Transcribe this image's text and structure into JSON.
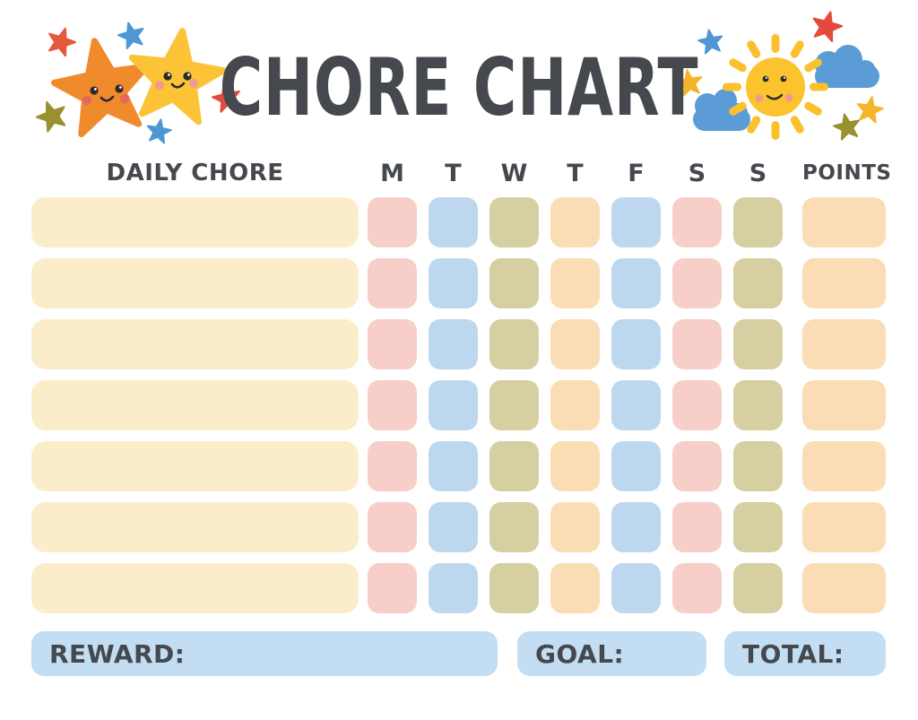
{
  "page": {
    "title": "CHORE CHART"
  },
  "table": {
    "chore_header": "DAILY CHORE",
    "day_headers": [
      "M",
      "T",
      "W",
      "T",
      "F",
      "S",
      "S"
    ],
    "points_header": "POINTS",
    "row_count": 7,
    "chore_cell_color": "cream",
    "day_cell_colors": [
      "pink",
      "blue",
      "olive",
      "peach",
      "blue",
      "pink",
      "olive"
    ],
    "points_cell_color": "peach"
  },
  "footer": {
    "reward_label": "REWARD:",
    "goal_label": "GOAL:",
    "total_label": "TOTAL:"
  },
  "decorations": {
    "left": "two smiling stars with sparkle stars",
    "right": "smiling sun with clouds and sparkle stars"
  },
  "colors": {
    "text": "#45494E",
    "cream": "#FBEDCA",
    "pink": "#F8CEC9",
    "blue": "#BDD8EE",
    "olive": "#D5CFA1",
    "peach": "#FBDDB5",
    "fieldblue": "#C3DDF2",
    "starorange": "#EF8A2D",
    "staryellow": "#FBC335",
    "sunyellow": "#FBC42E",
    "rayyellow": "#FBC02D",
    "cloudblue": "#5C9CD6",
    "smallred": "#E24B3B",
    "smallredorange": "#E4593E",
    "smallblue": "#4F97D4",
    "smallolive": "#99902F",
    "smallyellow": "#F5B52B",
    "cheekred": "#E4685C",
    "cheekpink": "#F19A92",
    "eyeblack": "#2B2B2B"
  }
}
